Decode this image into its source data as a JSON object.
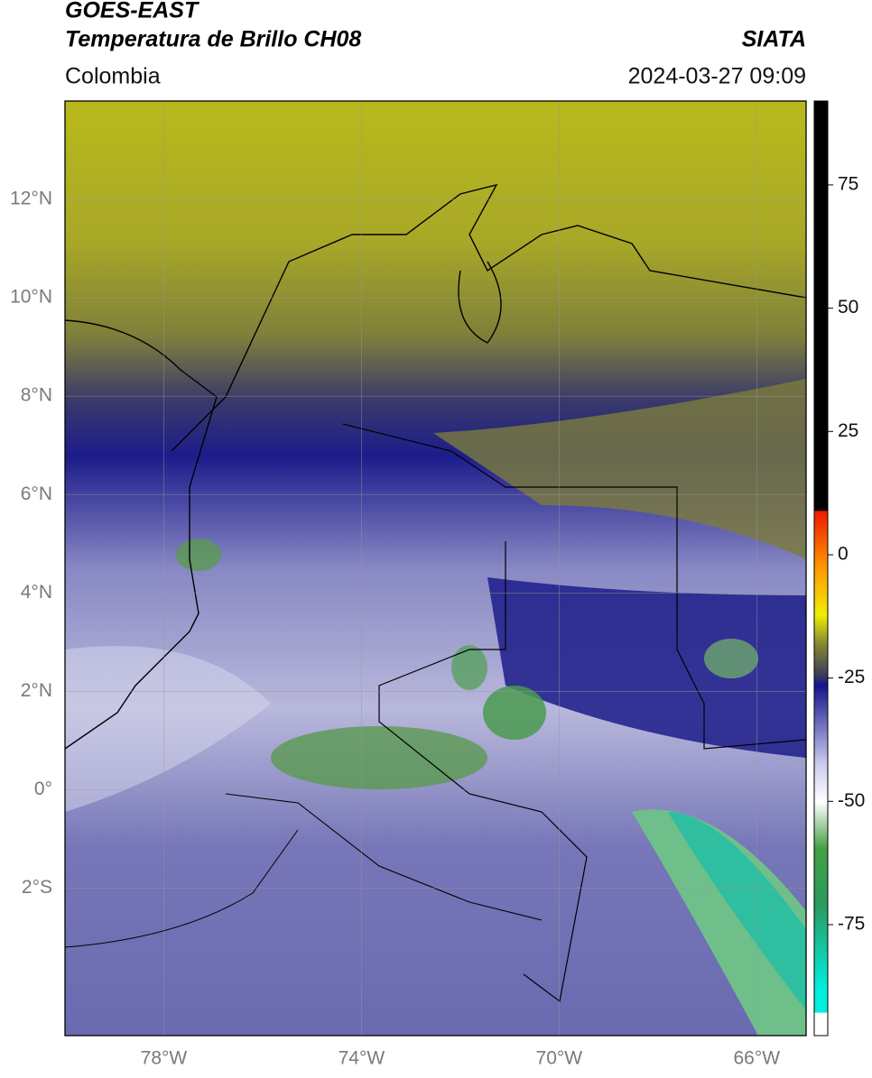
{
  "header": {
    "title": "GOES-EAST",
    "subtitle": "Temperatura de Brillo CH08",
    "region": "Colombia",
    "source": "SIATA",
    "datetime": "2024-03-27 09:09"
  },
  "map": {
    "lon_lim": [
      -80,
      -65
    ],
    "lat_lim": [
      -5,
      14
    ],
    "lat_ticks": [
      {
        "value": 12,
        "label": "12°N"
      },
      {
        "value": 10,
        "label": "10°N"
      },
      {
        "value": 8,
        "label": "8°N"
      },
      {
        "value": 6,
        "label": "6°N"
      },
      {
        "value": 4,
        "label": "4°N"
      },
      {
        "value": 2,
        "label": "2°N"
      },
      {
        "value": 0,
        "label": "0°"
      },
      {
        "value": -2,
        "label": "2°S"
      }
    ],
    "lon_ticks": [
      {
        "value": -78,
        "label": "78°W"
      },
      {
        "value": -74,
        "label": "74°W"
      },
      {
        "value": -70,
        "label": "70°W"
      },
      {
        "value": -66,
        "label": "66°W"
      }
    ]
  },
  "colorbar": {
    "lim": [
      -97.5,
      92
    ],
    "ticks": [
      75,
      50,
      25,
      0,
      -25,
      -50,
      -75
    ]
  }
}
